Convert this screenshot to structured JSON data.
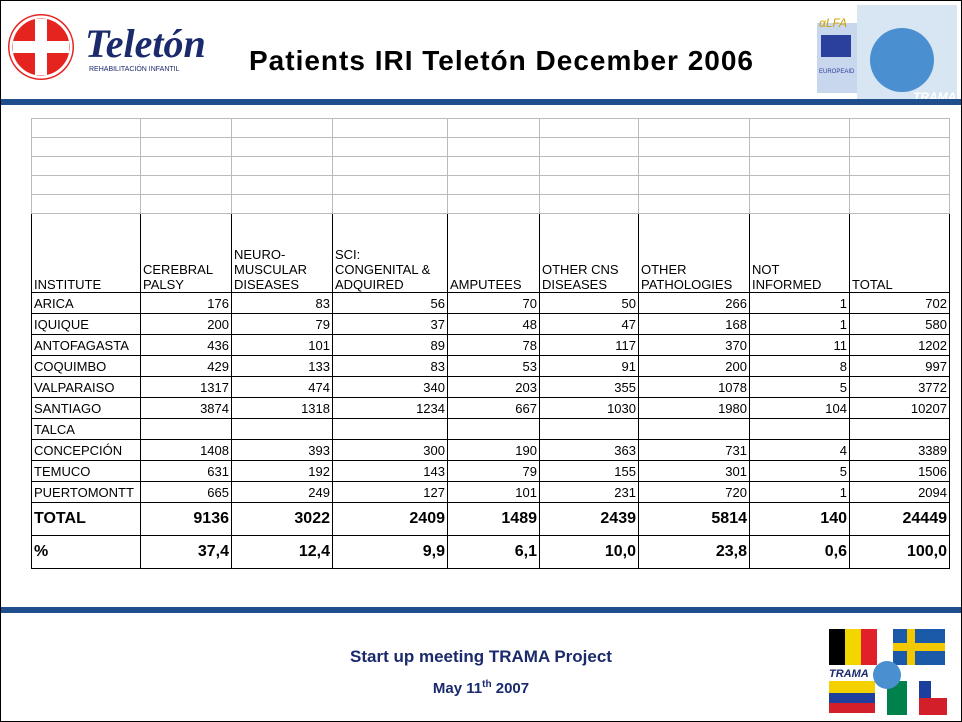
{
  "header": {
    "logo_name": "Teletón",
    "logo_subtitle": "REHABILITACIÓN INFANTIL",
    "title": "Patients IRI Teletón December 2006",
    "alfa_logo": "αLFA",
    "europeaid": "EUROPEAID",
    "trama_logo": "TRAMA"
  },
  "table": {
    "headers": [
      [
        "INSTITUTE"
      ],
      [
        "CEREBRAL",
        "PALSY"
      ],
      [
        "NEURO-",
        "MUSCULAR",
        "DISEASES"
      ],
      [
        "SCI:",
        "CONGENITAL &",
        "ADQUIRED"
      ],
      [
        "AMPUTEES"
      ],
      [
        "OTHER CNS",
        "DISEASES"
      ],
      [
        "OTHER",
        "PATHOLOGIES"
      ],
      [
        "NOT",
        "INFORMED"
      ],
      [
        "TOTAL"
      ]
    ],
    "rows": [
      [
        "ARICA",
        "176",
        "83",
        "56",
        "70",
        "50",
        "266",
        "1",
        "702"
      ],
      [
        "IQUIQUE",
        "200",
        "79",
        "37",
        "48",
        "47",
        "168",
        "1",
        "580"
      ],
      [
        "ANTOFAGASTA",
        "436",
        "101",
        "89",
        "78",
        "117",
        "370",
        "11",
        "1202"
      ],
      [
        "COQUIMBO",
        "429",
        "133",
        "83",
        "53",
        "91",
        "200",
        "8",
        "997"
      ],
      [
        "VALPARAISO",
        "1317",
        "474",
        "340",
        "203",
        "355",
        "1078",
        "5",
        "3772"
      ],
      [
        "SANTIAGO",
        "3874",
        "1318",
        "1234",
        "667",
        "1030",
        "1980",
        "104",
        "10207"
      ],
      [
        "TALCA"
      ],
      [
        "CONCEPCIÓN",
        "1408",
        "393",
        "300",
        "190",
        "363",
        "731",
        "4",
        "3389"
      ],
      [
        "TEMUCO",
        "631",
        "192",
        "143",
        "79",
        "155",
        "301",
        "5",
        "1506"
      ],
      [
        "PUERTOMONTT",
        "665",
        "249",
        "127",
        "101",
        "231",
        "720",
        "1",
        "2094"
      ]
    ],
    "total_row": [
      "TOTAL",
      "9136",
      "3022",
      "2409",
      "1489",
      "2439",
      "5814",
      "140",
      "24449"
    ],
    "percent_row": [
      "%",
      "37,4",
      "12,4",
      "9,9",
      "6,1",
      "10,0",
      "23,8",
      "0,6",
      "100,0"
    ]
  },
  "footer": {
    "line1": "Start up meeting TRAMA Project",
    "date": "May 11",
    "date_sup": "th",
    "year": "2007",
    "flags_logo": "TRAMA"
  }
}
